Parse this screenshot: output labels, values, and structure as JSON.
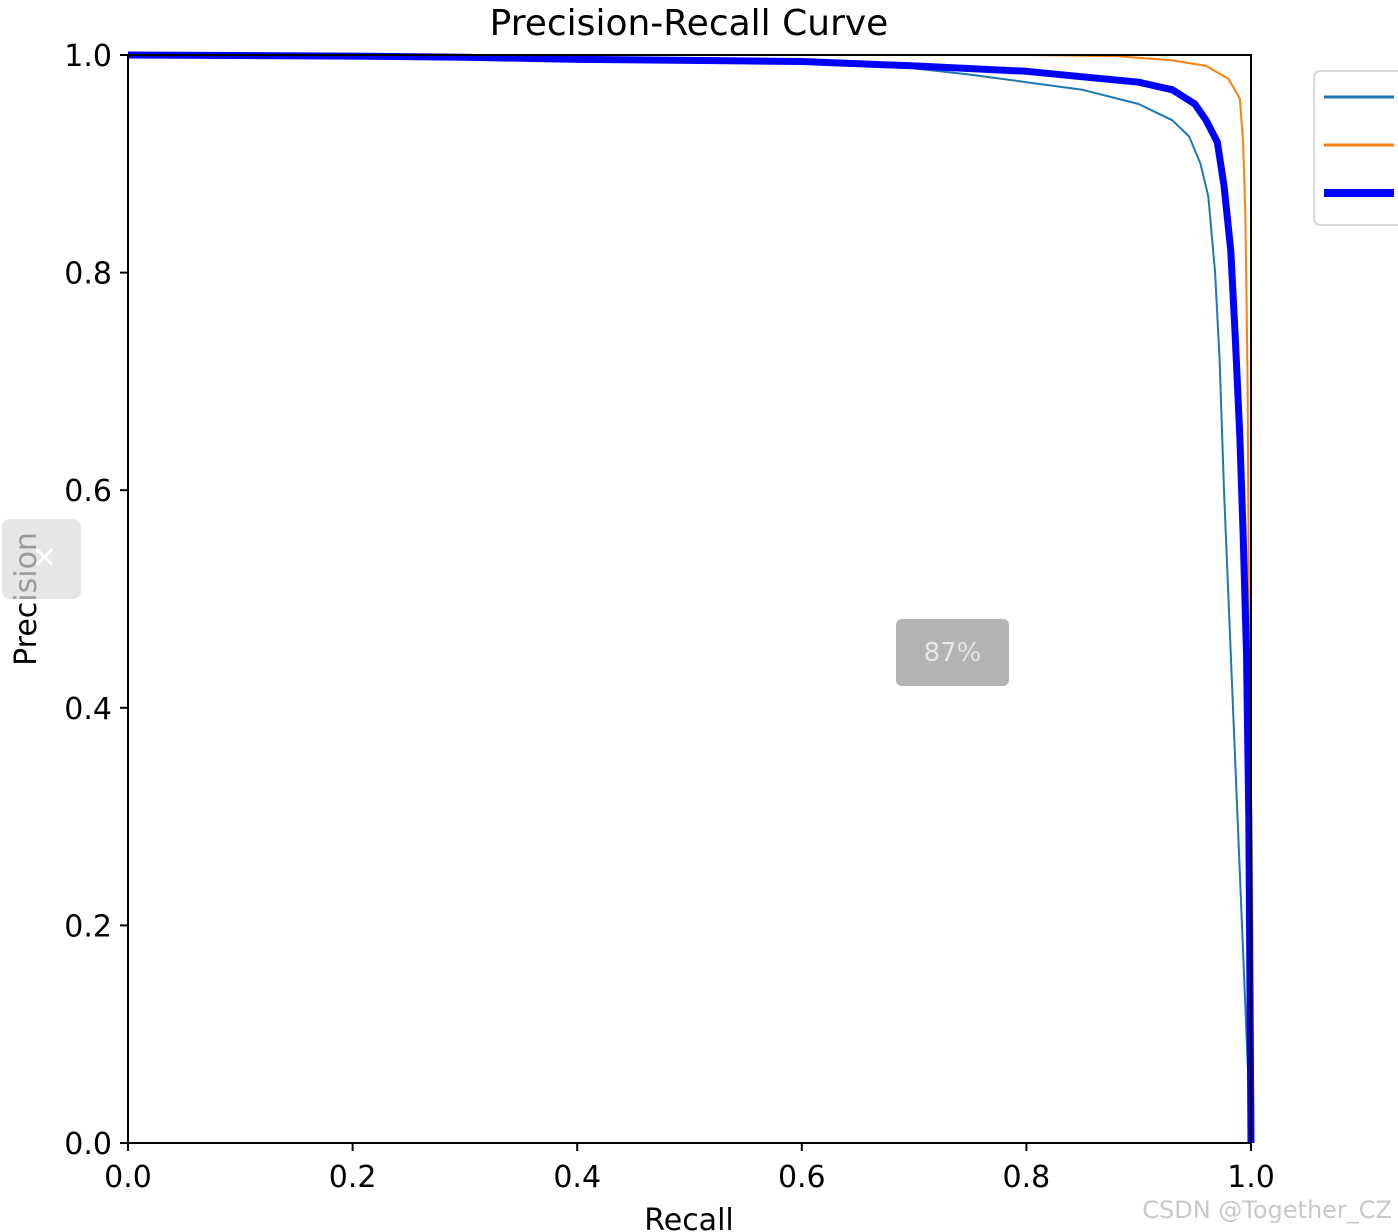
{
  "chart_data": {
    "type": "line",
    "title": "Precision-Recall Curve",
    "xlabel": "Recall",
    "ylabel": "Precision",
    "xlim": [
      0,
      1
    ],
    "ylim": [
      0,
      1
    ],
    "x_ticks": [
      "0.0",
      "0.2",
      "0.4",
      "0.6",
      "0.8",
      "1.0"
    ],
    "y_ticks": [
      "0.0",
      "0.2",
      "0.4",
      "0.6",
      "0.8",
      "1.0"
    ],
    "grid": false,
    "legend_position": "upper-right-outside",
    "series": [
      {
        "color": "#1f77b4",
        "line_width": 2,
        "points": [
          [
            0.0,
            1.0
          ],
          [
            0.1,
            0.999
          ],
          [
            0.2,
            0.998
          ],
          [
            0.3,
            0.997
          ],
          [
            0.4,
            0.995
          ],
          [
            0.5,
            0.994
          ],
          [
            0.6,
            0.992
          ],
          [
            0.68,
            0.99
          ],
          [
            0.75,
            0.982
          ],
          [
            0.8,
            0.975
          ],
          [
            0.85,
            0.968
          ],
          [
            0.9,
            0.955
          ],
          [
            0.93,
            0.94
          ],
          [
            0.945,
            0.925
          ],
          [
            0.955,
            0.9
          ],
          [
            0.962,
            0.87
          ],
          [
            0.968,
            0.8
          ],
          [
            0.972,
            0.72
          ],
          [
            0.976,
            0.6
          ],
          [
            0.98,
            0.5
          ],
          [
            0.984,
            0.4
          ],
          [
            0.988,
            0.3
          ],
          [
            0.992,
            0.2
          ],
          [
            0.996,
            0.1
          ],
          [
            1.0,
            0.0
          ]
        ]
      },
      {
        "color": "#ff7f0e",
        "line_width": 2,
        "points": [
          [
            0.0,
            1.0
          ],
          [
            0.2,
            1.0
          ],
          [
            0.4,
            1.0
          ],
          [
            0.6,
            1.0
          ],
          [
            0.8,
            1.0
          ],
          [
            0.88,
            0.999
          ],
          [
            0.93,
            0.995
          ],
          [
            0.96,
            0.99
          ],
          [
            0.98,
            0.978
          ],
          [
            0.99,
            0.96
          ],
          [
            0.993,
            0.92
          ],
          [
            0.995,
            0.85
          ],
          [
            0.997,
            0.7
          ],
          [
            0.998,
            0.5
          ],
          [
            0.999,
            0.3
          ],
          [
            1.0,
            0.0
          ]
        ]
      },
      {
        "color": "#0000ff",
        "line_width": 7,
        "points": [
          [
            0.0,
            1.0
          ],
          [
            0.1,
            0.9995
          ],
          [
            0.2,
            0.999
          ],
          [
            0.3,
            0.998
          ],
          [
            0.4,
            0.996
          ],
          [
            0.5,
            0.995
          ],
          [
            0.6,
            0.994
          ],
          [
            0.7,
            0.99
          ],
          [
            0.8,
            0.985
          ],
          [
            0.85,
            0.98
          ],
          [
            0.9,
            0.975
          ],
          [
            0.93,
            0.968
          ],
          [
            0.95,
            0.955
          ],
          [
            0.96,
            0.94
          ],
          [
            0.97,
            0.92
          ],
          [
            0.976,
            0.88
          ],
          [
            0.982,
            0.82
          ],
          [
            0.986,
            0.74
          ],
          [
            0.99,
            0.65
          ],
          [
            0.993,
            0.56
          ],
          [
            0.996,
            0.45
          ],
          [
            0.998,
            0.3
          ],
          [
            0.999,
            0.15
          ],
          [
            1.0,
            0.0
          ]
        ]
      }
    ]
  },
  "overlay": {
    "zoom_level": "87%"
  },
  "watermark": "CSDN @Together_CZ"
}
